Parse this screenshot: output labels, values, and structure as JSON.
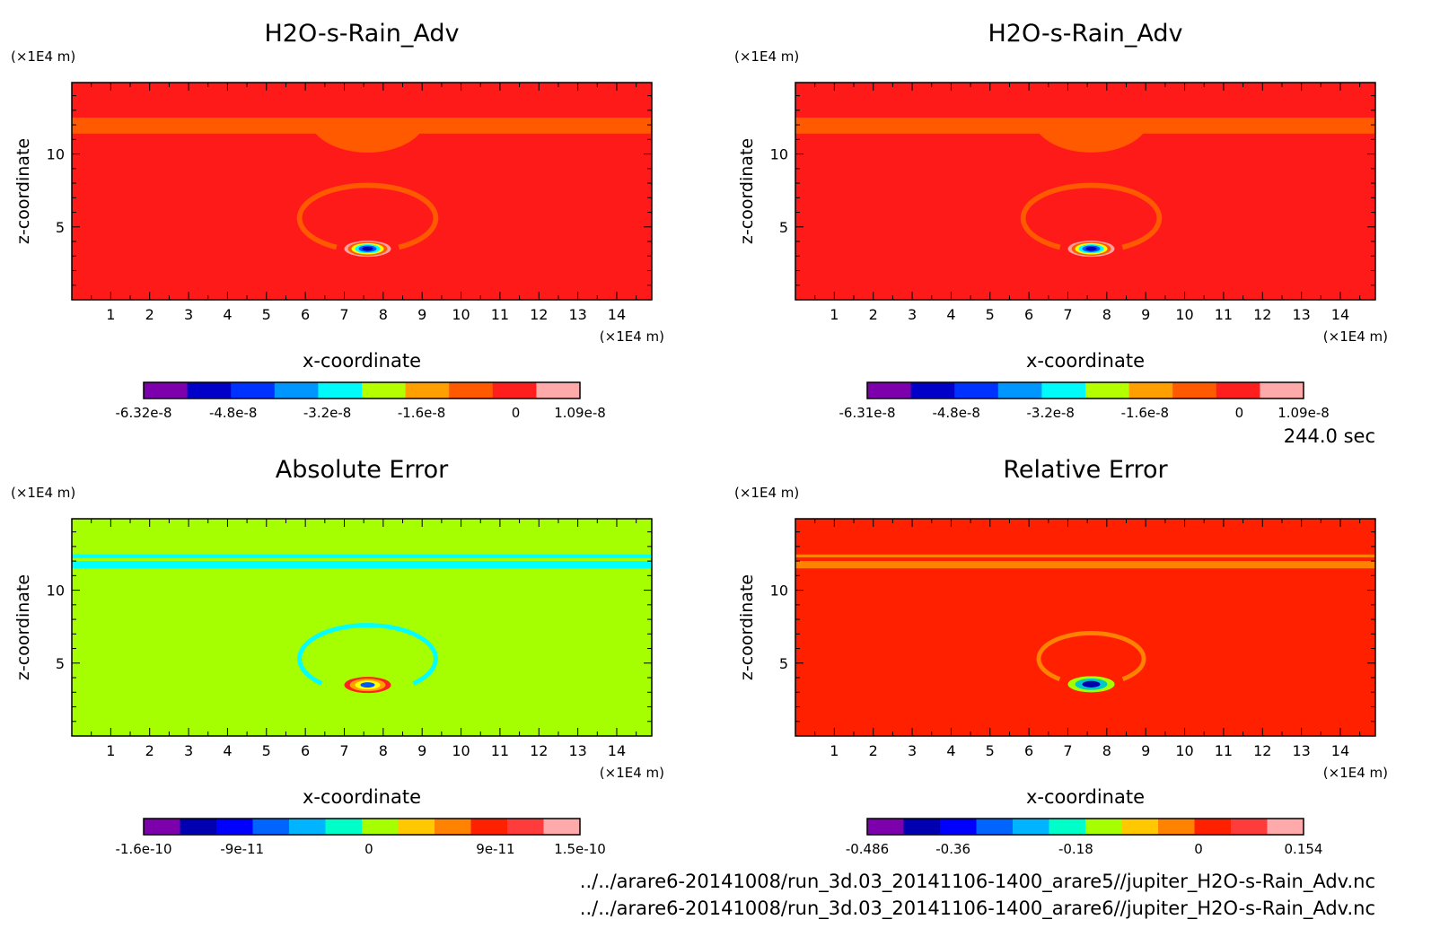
{
  "time_label": "244.0 sec",
  "files": [
    "../../arare6-20141008/run_3d.03_20141106-1400_arare5//jupiter_H2O-s-Rain_Adv.nc",
    "../../arare6-20141008/run_3d.03_20141106-1400_arare6//jupiter_H2O-s-Rain_Adv.nc"
  ],
  "chart_data": [
    {
      "type": "heatmap",
      "title": "H2O-s-Rain_Adv",
      "xlabel": "x-coordinate",
      "ylabel": "z-coordinate",
      "x_unit": "(×1E4 m)",
      "y_unit": "(×1E4 m)",
      "xlim": [
        0,
        14.9
      ],
      "ylim": [
        0,
        14.9
      ],
      "x_ticks": [
        "1",
        "2",
        "3",
        "4",
        "5",
        "6",
        "7",
        "8",
        "9",
        "10",
        "11",
        "12",
        "13",
        "14"
      ],
      "y_ticks": [
        "5",
        "10"
      ],
      "background": "#ff1a1a",
      "bands": [
        {
          "z": [
            11.4,
            12.5
          ],
          "color": "#ff5a00"
        }
      ],
      "cap": {
        "x": [
          6.1,
          9.1
        ],
        "z_bottom": 12.5,
        "z_top": 14.9,
        "color": "#ff5a00"
      },
      "rings": [
        {
          "cx": 7.6,
          "cz": 5.6,
          "rx": 1.75,
          "rz": 2.25,
          "width": 0.35,
          "color": "#ff5a00",
          "open_below": 3.6
        }
      ],
      "core": {
        "cx": 7.6,
        "cz": 3.5,
        "levels": [
          "#ffa0a0",
          "#ff5a00",
          "#ffff00",
          "#00ffff",
          "#0055ff",
          "#0000b0"
        ]
      },
      "colorbar": {
        "colors": [
          "#7d00ad",
          "#0000c8",
          "#0032ff",
          "#0096ff",
          "#00fafa",
          "#b4ff00",
          "#ffa000",
          "#ff5a00",
          "#ff1e1e",
          "#ffaaaa"
        ],
        "tick_labels": [
          "-6.32e-8",
          "-4.8e-8",
          "-3.2e-8",
          "-1.6e-8",
          "0",
          "1.09e-8"
        ],
        "tick_values": [
          -6.32e-08,
          -4.8e-08,
          -3.2e-08,
          -1.6e-08,
          0,
          1.09e-08
        ],
        "range": [
          -6.32e-08,
          1.09e-08
        ]
      }
    },
    {
      "type": "heatmap",
      "title": "H2O-s-Rain_Adv",
      "xlabel": "x-coordinate",
      "ylabel": "z-coordinate",
      "x_unit": "(×1E4 m)",
      "y_unit": "(×1E4 m)",
      "xlim": [
        0,
        14.9
      ],
      "ylim": [
        0,
        14.9
      ],
      "x_ticks": [
        "1",
        "2",
        "3",
        "4",
        "5",
        "6",
        "7",
        "8",
        "9",
        "10",
        "11",
        "12",
        "13",
        "14"
      ],
      "y_ticks": [
        "5",
        "10"
      ],
      "background": "#ff1a1a",
      "bands": [
        {
          "z": [
            11.4,
            12.5
          ],
          "color": "#ff5a00"
        }
      ],
      "cap": {
        "x": [
          6.1,
          9.1
        ],
        "z_bottom": 12.5,
        "z_top": 14.9,
        "color": "#ff5a00"
      },
      "rings": [
        {
          "cx": 7.6,
          "cz": 5.6,
          "rx": 1.75,
          "rz": 2.25,
          "width": 0.35,
          "color": "#ff5a00",
          "open_below": 3.6
        }
      ],
      "core": {
        "cx": 7.6,
        "cz": 3.5,
        "levels": [
          "#ffa0a0",
          "#ff5a00",
          "#ffff00",
          "#00ffff",
          "#0055ff",
          "#0000b0"
        ]
      },
      "colorbar": {
        "colors": [
          "#7d00ad",
          "#0000c8",
          "#0032ff",
          "#0096ff",
          "#00fafa",
          "#b4ff00",
          "#ffa000",
          "#ff5a00",
          "#ff1e1e",
          "#ffaaaa"
        ],
        "tick_labels": [
          "-6.31e-8",
          "-4.8e-8",
          "-3.2e-8",
          "-1.6e-8",
          "0",
          "1.09e-8"
        ],
        "tick_values": [
          -6.31e-08,
          -4.8e-08,
          -3.2e-08,
          -1.6e-08,
          0,
          1.09e-08
        ],
        "range": [
          -6.31e-08,
          1.09e-08
        ]
      }
    },
    {
      "type": "heatmap",
      "title": "Absolute Error",
      "xlabel": "x-coordinate",
      "ylabel": "z-coordinate",
      "x_unit": "(×1E4 m)",
      "y_unit": "(×1E4 m)",
      "xlim": [
        0,
        14.9
      ],
      "ylim": [
        0,
        14.9
      ],
      "x_ticks": [
        "1",
        "2",
        "3",
        "4",
        "5",
        "6",
        "7",
        "8",
        "9",
        "10",
        "11",
        "12",
        "13",
        "14"
      ],
      "y_ticks": [
        "5",
        "10"
      ],
      "background": "#a6ff00",
      "bands": [
        {
          "z": [
            12.2,
            12.45
          ],
          "color": "#00ffff"
        },
        {
          "z": [
            11.5,
            12.0
          ],
          "color": "#00ffff"
        }
      ],
      "rings": [
        {
          "cx": 7.6,
          "cz": 5.3,
          "rx": 1.75,
          "rz": 2.3,
          "width": 0.3,
          "color": "#00ffff",
          "open_below": 3.6
        },
        {
          "cx": 7.6,
          "cz": 5.0,
          "rx": 1.05,
          "rz": 1.4,
          "width": 0.3,
          "color": "#00ffff",
          "open_below": 3.6
        }
      ],
      "core": {
        "cx": 7.6,
        "cz": 3.5,
        "levels": [
          "#ff2020",
          "#ffa000",
          "#ffff00",
          "#0055ff"
        ]
      },
      "colorbar": {
        "colors": [
          "#7d00ad",
          "#0000b0",
          "#0000ff",
          "#0064ff",
          "#00b4ff",
          "#00ffc8",
          "#a6ff00",
          "#ffc800",
          "#ff8200",
          "#ff2000",
          "#ff3c3c",
          "#ffaaaa"
        ],
        "tick_labels": [
          "-1.6e-10",
          "-9e-11",
          "0",
          "9e-11",
          "1.5e-10"
        ],
        "tick_values": [
          -1.6e-10,
          -9e-11,
          0,
          9e-11,
          1.5e-10
        ],
        "range": [
          -1.6e-10,
          1.5e-10
        ]
      }
    },
    {
      "type": "heatmap",
      "title": "Relative Error",
      "xlabel": "x-coordinate",
      "ylabel": "z-coordinate",
      "x_unit": "(×1E4 m)",
      "y_unit": "(×1E4 m)",
      "xlim": [
        0,
        14.9
      ],
      "ylim": [
        0,
        14.9
      ],
      "x_ticks": [
        "1",
        "2",
        "3",
        "4",
        "5",
        "6",
        "7",
        "8",
        "9",
        "10",
        "11",
        "12",
        "13",
        "14"
      ],
      "y_ticks": [
        "5",
        "10"
      ],
      "background": "#ff2000",
      "bands": [
        {
          "z": [
            12.25,
            12.45
          ],
          "color": "#ff8200"
        },
        {
          "z": [
            11.5,
            12.0
          ],
          "color": "#ff8200"
        }
      ],
      "rings": [
        {
          "cx": 7.6,
          "cz": 5.3,
          "rx": 1.35,
          "rz": 1.75,
          "width": 0.3,
          "color": "#ff8200",
          "open_below": 3.9
        }
      ],
      "core": {
        "cx": 7.6,
        "cz": 3.55,
        "levels": [
          "#a6ff00",
          "#00c8c8",
          "#0000b0"
        ]
      },
      "colorbar": {
        "colors": [
          "#7d00ad",
          "#0000b0",
          "#0000ff",
          "#0064ff",
          "#00b4ff",
          "#00ffc8",
          "#a6ff00",
          "#ffc800",
          "#ff8200",
          "#ff2000",
          "#ff3c3c",
          "#ffaaaa"
        ],
        "tick_labels": [
          "-0.486",
          "-0.36",
          "-0.18",
          "0",
          "0.154"
        ],
        "tick_values": [
          -0.486,
          -0.36,
          -0.18,
          0,
          0.154
        ],
        "range": [
          -0.486,
          0.154
        ]
      }
    }
  ]
}
